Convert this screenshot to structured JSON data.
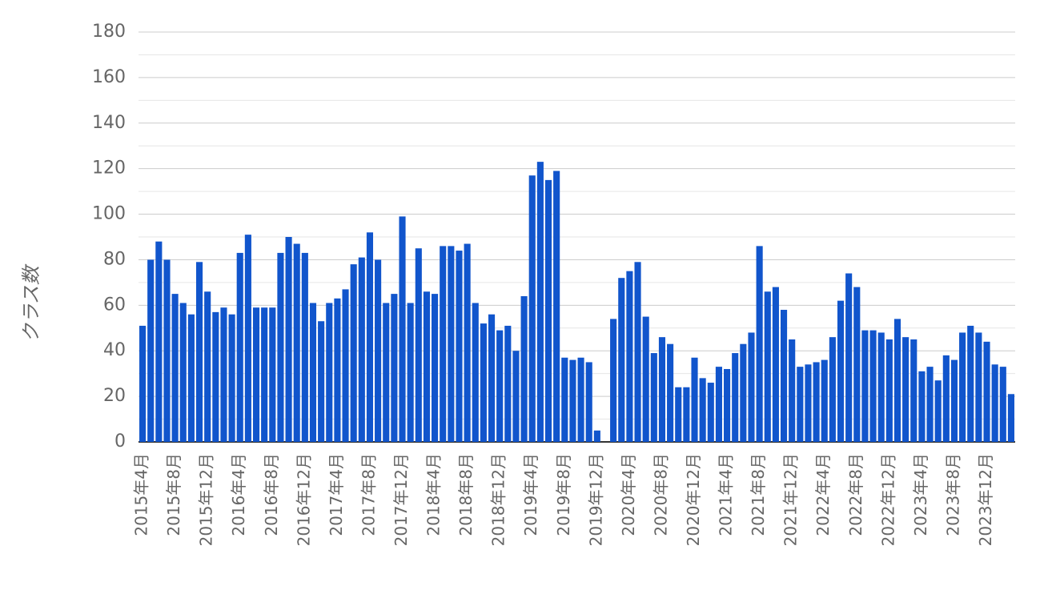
{
  "chart_data": {
    "type": "bar",
    "y_label": "クラス数",
    "categories": [
      "2015年4月",
      null,
      null,
      null,
      "2015年8月",
      null,
      null,
      null,
      "2015年12月",
      null,
      null,
      null,
      "2016年4月",
      null,
      null,
      null,
      "2016年8月",
      null,
      null,
      null,
      "2016年12月",
      null,
      null,
      null,
      "2017年4月",
      null,
      null,
      null,
      "2017年8月",
      null,
      null,
      null,
      "2017年12月",
      null,
      null,
      null,
      "2018年4月",
      null,
      null,
      null,
      "2018年8月",
      null,
      null,
      null,
      "2018年12月",
      null,
      null,
      null,
      "2019年4月",
      null,
      null,
      null,
      "2019年8月",
      null,
      null,
      null,
      "2019年12月",
      null,
      null,
      null,
      "2020年4月",
      null,
      null,
      null,
      "2020年8月",
      null,
      null,
      null,
      "2020年12月",
      null,
      null,
      null,
      "2021年4月",
      null,
      null,
      null,
      "2021年8月",
      null,
      null,
      null,
      "2021年12月",
      null,
      null,
      null,
      "2022年4月",
      null,
      null,
      null,
      "2022年8月",
      null,
      null,
      null,
      "2022年12月",
      null,
      null,
      null,
      "2023年4月",
      null,
      null,
      null,
      "2023年8月",
      null,
      null,
      null,
      "2023年12月",
      null,
      null,
      null
    ],
    "values": [
      51,
      80,
      88,
      80,
      65,
      61,
      56,
      79,
      66,
      57,
      59,
      56,
      83,
      91,
      59,
      59,
      59,
      83,
      90,
      87,
      83,
      61,
      53,
      61,
      63,
      67,
      78,
      81,
      92,
      80,
      61,
      65,
      99,
      61,
      85,
      66,
      65,
      86,
      86,
      84,
      87,
      61,
      52,
      56,
      49,
      51,
      40,
      64,
      117,
      123,
      115,
      119,
      37,
      36,
      37,
      35,
      5,
      0,
      54,
      72,
      75,
      79,
      55,
      39,
      46,
      43,
      24,
      24,
      37,
      28,
      26,
      33,
      32,
      39,
      43,
      48,
      86,
      66,
      68,
      58,
      45,
      33,
      34,
      35,
      36,
      46,
      62,
      74,
      68,
      49,
      49,
      48,
      45,
      54,
      46,
      45,
      31,
      33,
      27,
      38,
      36,
      48,
      51,
      48,
      44,
      34,
      33,
      21
    ],
    "color": "#1155cc",
    "ylim": [
      0,
      180
    ],
    "yticks": [
      0,
      20,
      40,
      60,
      80,
      100,
      120,
      140,
      160,
      180
    ],
    "minor_yticks": [
      10,
      30,
      50,
      70,
      90,
      110,
      130,
      150,
      170
    ],
    "grid": true
  }
}
